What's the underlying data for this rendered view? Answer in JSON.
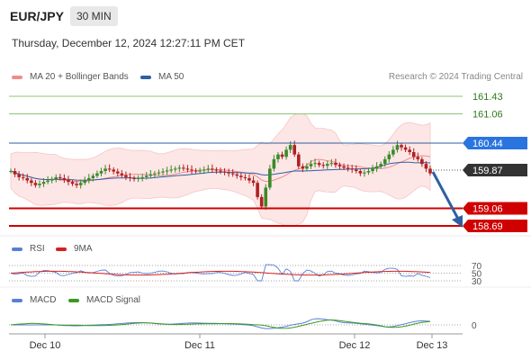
{
  "header": {
    "pair": "EUR/JPY",
    "interval": "30 MIN"
  },
  "timestamp": "Thursday, December 12, 2024 12:27:11 PM CET",
  "legend_main": [
    {
      "label": "MA 20 + Bollinger Bands",
      "color": "#f08c8c"
    },
    {
      "label": "MA 50",
      "color": "#2e5fa3"
    }
  ],
  "copyright": "Research © 2024 Trading Central",
  "legend_rsi": [
    {
      "label": "RSI",
      "color": "#5b7fd6"
    },
    {
      "label": "9MA",
      "color": "#d42020"
    }
  ],
  "legend_macd": [
    {
      "label": "MACD",
      "color": "#5b7fd6"
    },
    {
      "label": "MACD Signal",
      "color": "#3a9a20"
    }
  ],
  "colors": {
    "up_candle": "#3a8a2a",
    "down_candle": "#b02020",
    "resistance": "#8cc67a",
    "support": "#d00000",
    "pivot": "#2e5fa3",
    "current_price_tag": "#333333",
    "forecast_arrow": "#2e5fa3"
  },
  "chart_data": {
    "type": "candlestick",
    "x_ticks": [
      "Dec 10",
      "Dec 11",
      "Dec 12",
      "Dec 13"
    ],
    "levels": [
      {
        "value": 161.43,
        "label": "161.43",
        "kind": "resistance"
      },
      {
        "value": 161.06,
        "label": "161.06",
        "kind": "resistance"
      },
      {
        "value": 160.44,
        "label": "160.44",
        "kind": "pivot"
      },
      {
        "value": 159.87,
        "label": "159.87",
        "kind": "current"
      },
      {
        "value": 159.06,
        "label": "159.06",
        "kind": "support"
      },
      {
        "value": 158.69,
        "label": "158.69",
        "kind": "support"
      }
    ],
    "forecast": {
      "from": 159.87,
      "to": 158.69,
      "direction": "down"
    },
    "price_series_close": [
      159.85,
      159.78,
      159.72,
      159.7,
      159.65,
      159.6,
      159.55,
      159.58,
      159.62,
      159.65,
      159.68,
      159.72,
      159.7,
      159.66,
      159.62,
      159.58,
      159.55,
      159.6,
      159.65,
      159.7,
      159.75,
      159.8,
      159.85,
      159.9,
      159.88,
      159.84,
      159.8,
      159.76,
      159.72,
      159.7,
      159.68,
      159.7,
      159.72,
      159.75,
      159.78,
      159.8,
      159.82,
      159.84,
      159.86,
      159.88,
      159.9,
      159.92,
      159.9,
      159.88,
      159.86,
      159.85,
      159.86,
      159.88,
      159.9,
      159.88,
      159.86,
      159.84,
      159.82,
      159.8,
      159.78,
      159.75,
      159.72,
      159.7,
      159.65,
      159.6,
      159.3,
      159.1,
      159.5,
      159.9,
      160.1,
      160.2,
      160.15,
      160.3,
      160.4,
      160.2,
      159.95,
      159.9,
      159.95,
      160.0,
      160.02,
      159.98,
      159.96,
      160.0,
      160.02,
      159.98,
      159.95,
      159.92,
      159.9,
      159.88,
      159.85,
      159.8,
      159.82,
      159.85,
      159.9,
      159.95,
      160.0,
      160.1,
      160.2,
      160.3,
      160.4,
      160.35,
      160.3,
      160.25,
      160.15,
      160.1,
      160.0,
      159.9,
      159.8
    ],
    "rsi": {
      "levels": [
        70,
        50,
        30
      ],
      "latest": 45
    },
    "macd": {
      "zero_line": 0
    }
  }
}
